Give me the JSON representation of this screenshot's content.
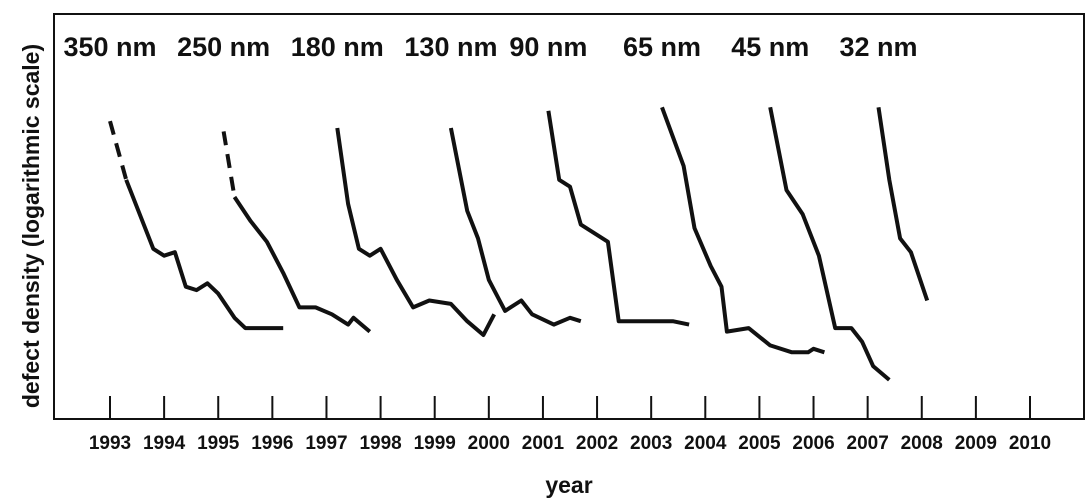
{
  "chart_data": {
    "type": "line",
    "title": "",
    "xlabel": "year",
    "ylabel": "defect density (logarithmic scale)",
    "y_scale": "log",
    "y_tick_labels": false,
    "grid": false,
    "xlim": [
      1993,
      2010
    ],
    "ylim": [
      0,
      100
    ],
    "x_ticks": [
      "1993",
      "1994",
      "1995",
      "1996",
      "1997",
      "1998",
      "1999",
      "2000",
      "2001",
      "2002",
      "2003",
      "2004",
      "2005",
      "2006",
      "2007",
      "2008",
      "2009",
      "2010"
    ],
    "line_color": "#111111",
    "series": [
      {
        "name": "350 nm",
        "dashed_until": 1,
        "points": [
          [
            1993.0,
            82
          ],
          [
            1993.3,
            65
          ],
          [
            1993.8,
            45
          ],
          [
            1994.0,
            43
          ],
          [
            1994.2,
            44
          ],
          [
            1994.4,
            34
          ],
          [
            1994.6,
            33
          ],
          [
            1994.8,
            35
          ],
          [
            1995.0,
            32
          ],
          [
            1995.3,
            25
          ],
          [
            1995.5,
            22
          ],
          [
            1995.8,
            22
          ],
          [
            1996.2,
            22
          ]
        ]
      },
      {
        "name": "250 nm",
        "dashed_until": 1,
        "points": [
          [
            1995.1,
            79
          ],
          [
            1995.3,
            60
          ],
          [
            1995.6,
            53
          ],
          [
            1995.9,
            47
          ],
          [
            1996.2,
            38
          ],
          [
            1996.5,
            28
          ],
          [
            1996.8,
            28
          ],
          [
            1997.1,
            26
          ],
          [
            1997.4,
            23
          ],
          [
            1997.5,
            25
          ],
          [
            1997.8,
            21
          ]
        ]
      },
      {
        "name": "180 nm",
        "dashed_until": 0,
        "points": [
          [
            1997.2,
            80
          ],
          [
            1997.4,
            58
          ],
          [
            1997.6,
            45
          ],
          [
            1997.8,
            43
          ],
          [
            1998.0,
            45
          ],
          [
            1998.3,
            36
          ],
          [
            1998.6,
            28
          ],
          [
            1998.9,
            30
          ],
          [
            1999.3,
            29
          ],
          [
            1999.6,
            24
          ],
          [
            1999.9,
            20
          ],
          [
            2000.1,
            26
          ]
        ]
      },
      {
        "name": "130 nm",
        "dashed_until": 0,
        "points": [
          [
            1999.3,
            80
          ],
          [
            1999.6,
            56
          ],
          [
            1999.8,
            48
          ],
          [
            2000.0,
            36
          ],
          [
            2000.2,
            30
          ],
          [
            2000.3,
            27
          ],
          [
            2000.6,
            30
          ],
          [
            2000.8,
            26
          ],
          [
            2001.2,
            23
          ],
          [
            2001.5,
            25
          ],
          [
            2001.7,
            24
          ]
        ]
      },
      {
        "name": "90 nm",
        "dashed_until": 0,
        "points": [
          [
            2001.1,
            85
          ],
          [
            2001.3,
            65
          ],
          [
            2001.5,
            63
          ],
          [
            2001.7,
            52
          ],
          [
            2002.0,
            49
          ],
          [
            2002.2,
            47
          ],
          [
            2002.4,
            24
          ],
          [
            2002.9,
            24
          ],
          [
            2003.2,
            24
          ],
          [
            2003.4,
            24
          ],
          [
            2003.7,
            23
          ]
        ]
      },
      {
        "name": "65 nm",
        "dashed_until": 0,
        "points": [
          [
            2003.2,
            86
          ],
          [
            2003.6,
            69
          ],
          [
            2003.8,
            51
          ],
          [
            2004.1,
            40
          ],
          [
            2004.3,
            34
          ],
          [
            2004.4,
            21
          ],
          [
            2004.8,
            22
          ],
          [
            2005.2,
            17
          ],
          [
            2005.6,
            15
          ],
          [
            2005.9,
            15
          ],
          [
            2006.0,
            16
          ],
          [
            2006.2,
            15
          ]
        ]
      },
      {
        "name": "45 nm",
        "dashed_until": 0,
        "points": [
          [
            2005.2,
            86
          ],
          [
            2005.5,
            62
          ],
          [
            2005.8,
            55
          ],
          [
            2006.1,
            43
          ],
          [
            2006.4,
            22
          ],
          [
            2006.7,
            22
          ],
          [
            2006.9,
            18
          ],
          [
            2007.1,
            11
          ],
          [
            2007.4,
            7
          ]
        ]
      },
      {
        "name": "32 nm",
        "dashed_until": 0,
        "points": [
          [
            2007.2,
            86
          ],
          [
            2007.4,
            65
          ],
          [
            2007.6,
            48
          ],
          [
            2007.8,
            44
          ],
          [
            2008.1,
            30
          ]
        ]
      }
    ]
  }
}
